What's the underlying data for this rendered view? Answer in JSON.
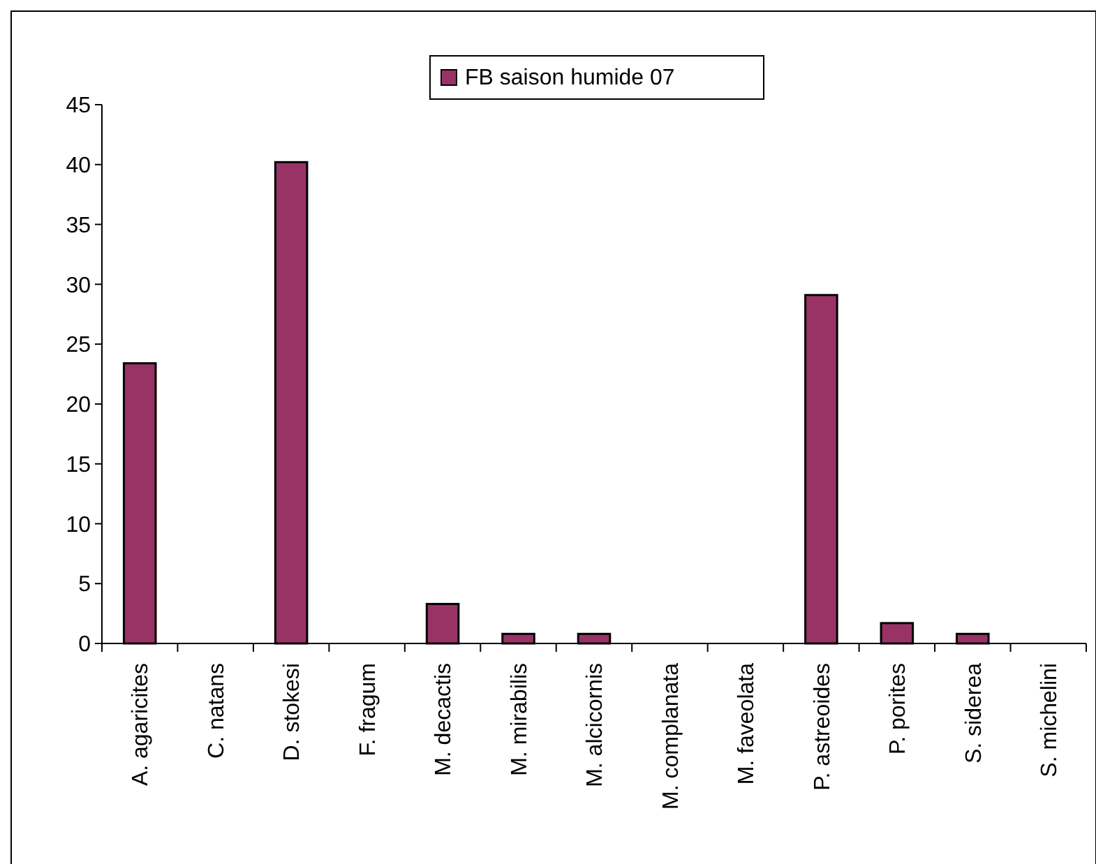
{
  "chart_data": {
    "type": "bar",
    "categories": [
      "A. agaricites",
      "C. natans",
      "D. stokesi",
      "F. fragum",
      "M. decactis",
      "M. mirabilis",
      "M. alcicornis",
      "M. complanata",
      "M. faveolata",
      "P. astreoides",
      "P. porites",
      "S. siderea",
      "S. michelini"
    ],
    "series": [
      {
        "name": "FB saison humide 07",
        "color": "#993366",
        "values": [
          23.4,
          0,
          40.2,
          0,
          3.3,
          0.8,
          0.8,
          0,
          0,
          29.1,
          1.7,
          0.8,
          0
        ]
      }
    ],
    "ylim": [
      0,
      45
    ],
    "yticks": [
      0,
      5,
      10,
      15,
      20,
      25,
      30,
      35,
      40,
      45
    ],
    "grid": false,
    "legend": "top"
  }
}
